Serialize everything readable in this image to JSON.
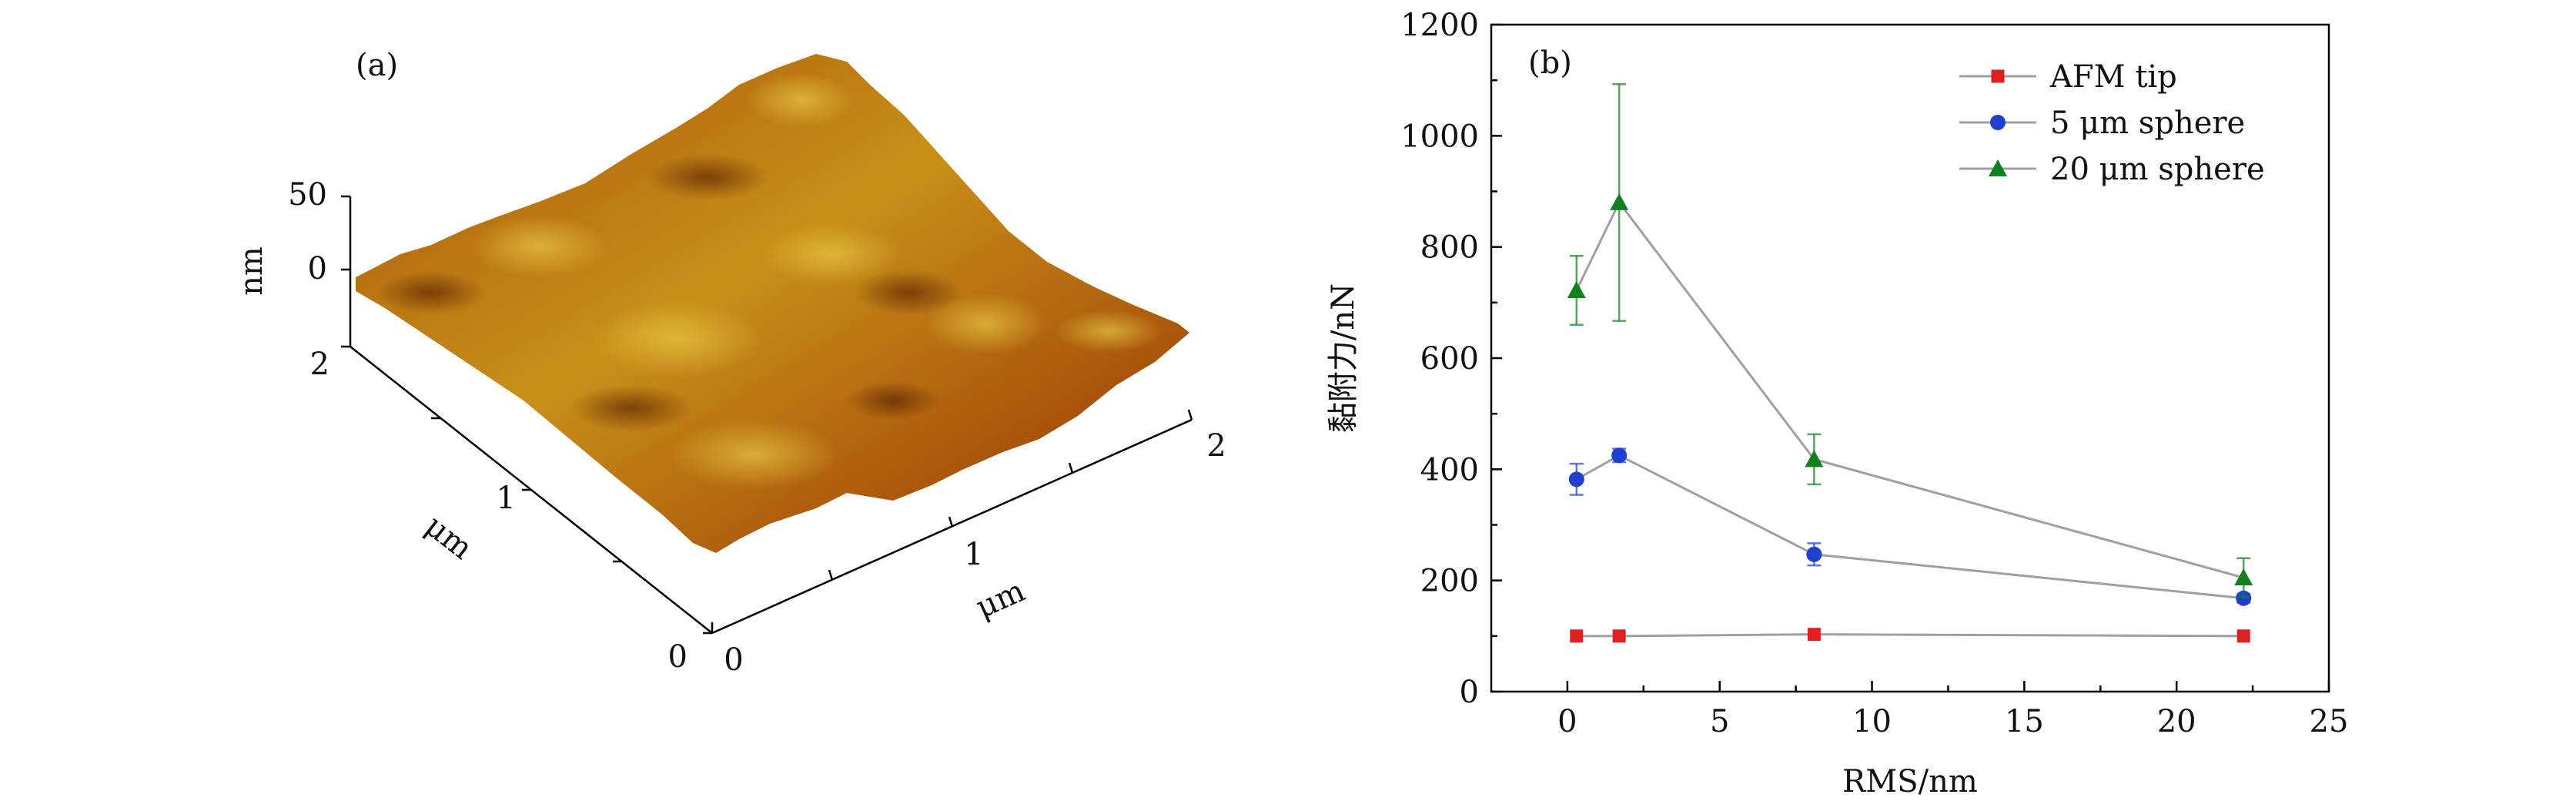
{
  "panel_a": {
    "label": "(a)",
    "z_axis": {
      "ticks": [
        "50",
        "0"
      ],
      "unit": "nm"
    },
    "y_axis": {
      "ticks": [
        "2",
        "1",
        "0"
      ],
      "unit": "μm"
    },
    "x_axis": {
      "ticks": [
        "0",
        "1",
        "2"
      ],
      "unit": "μm"
    },
    "surface_colors": {
      "dark": "#5a2000",
      "mid": "#a8520a",
      "light": "#c89018",
      "highlight": "#dfc23a"
    }
  },
  "chart_data": {
    "type": "line",
    "panel_label": "(b)",
    "xlabel": "RMS/nm",
    "ylabel": "黏附力/nN",
    "xlim": [
      -2.5,
      25
    ],
    "ylim": [
      0,
      1200
    ],
    "xticks": [
      0,
      5,
      10,
      15,
      20,
      25
    ],
    "yticks": [
      0,
      200,
      400,
      600,
      800,
      1000,
      1200
    ],
    "legend_position": "top-right",
    "series": [
      {
        "name": "AFM tip",
        "color": "#e02020",
        "marker": "square",
        "x": [
          0.3,
          1.7,
          8.1,
          22.2
        ],
        "y": [
          100,
          100,
          103,
          100
        ],
        "err": [
          0,
          0,
          0,
          0
        ]
      },
      {
        "name": "5 μm sphere",
        "color": "#1f3fd0",
        "marker": "circle",
        "x": [
          0.3,
          1.7,
          8.1,
          22.2
        ],
        "y": [
          382,
          425,
          247,
          168
        ],
        "err": [
          28,
          12,
          20,
          8
        ]
      },
      {
        "name": "20 μm sphere",
        "color": "#13801f",
        "marker": "triangle",
        "x": [
          0.3,
          1.7,
          8.1,
          22.2
        ],
        "y": [
          722,
          880,
          418,
          205
        ],
        "err": [
          62,
          213,
          45,
          35
        ]
      }
    ],
    "line_color": "#a0a0a0",
    "grid": false
  }
}
